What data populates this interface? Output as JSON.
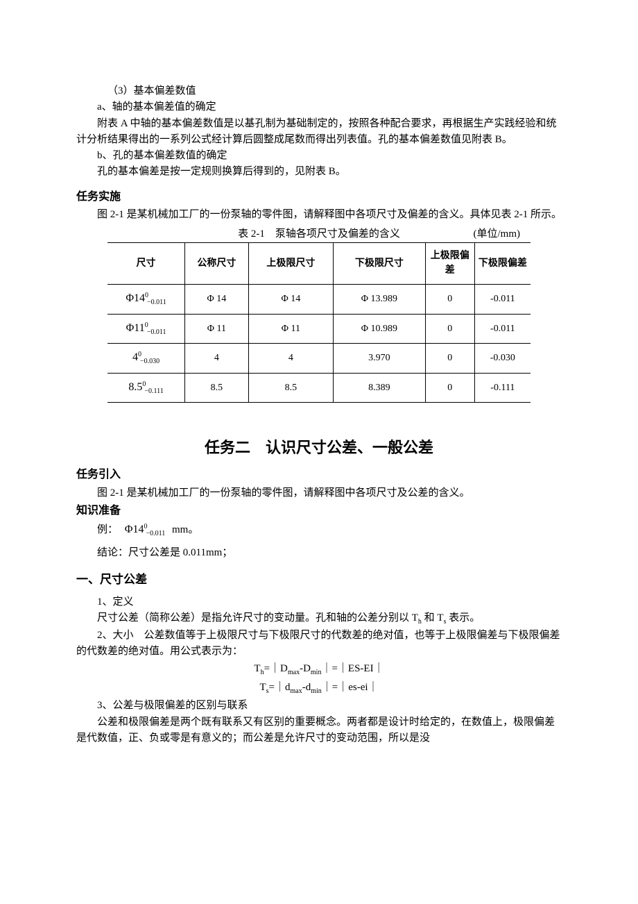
{
  "section1": {
    "item3": "（3）基本偏差数值",
    "a_label": "a、轴的基本偏差值的确定",
    "a_text": "附表 A 中轴的基本偏差数值是以基孔制为基础制定的，按照各种配合要求，再根据生产实践经验和统计分析结果得出的一系列公式经计算后圆整成尾数而得出列表值。孔的基本偏差数值见附表 B。",
    "b_label": "b、孔的基本偏差数值的确定",
    "b_text": "孔的基本偏差是按一定规则换算后得到的，见附表 B。"
  },
  "task_impl": {
    "heading": "任务实施",
    "intro": "图 2-1 是某机械加工厂的一份泵轴的零件图，请解释图中各项尺寸及偏差的含义。具体见表 2-1 所示。",
    "caption": "表 2-1　泵轴各项尺寸及偏差的含义",
    "unit": "(单位/mm)"
  },
  "table": {
    "headers": {
      "dim": "尺寸",
      "nominal": "公称尺寸",
      "upper_size": "上极限尺寸",
      "lower_size": "下极限尺寸",
      "upper_dev": "上极限偏差",
      "lower_dev": "下极限偏差"
    },
    "rows": [
      {
        "dim_base": "Φ14",
        "dim_sup": "0",
        "dim_sub": "−0.011",
        "nominal": "Φ 14",
        "upper_size": "Φ 14",
        "lower_size": "Φ 13.989",
        "upper_dev": "0",
        "lower_dev": "-0.011"
      },
      {
        "dim_base": "Φ11",
        "dim_sup": "0",
        "dim_sub": "−0.011",
        "nominal": "Φ 11",
        "upper_size": "Φ 11",
        "lower_size": "Φ 10.989",
        "upper_dev": "0",
        "lower_dev": "-0.011"
      },
      {
        "dim_base": "4",
        "dim_sup": "0",
        "dim_sub": "−0.030",
        "nominal": "4",
        "upper_size": "4",
        "lower_size": "3.970",
        "upper_dev": "0",
        "lower_dev": "-0.030"
      },
      {
        "dim_base": "8.5",
        "dim_sup": "0",
        "dim_sub": "−0.111",
        "nominal": "8.5",
        "upper_size": "8.5",
        "lower_size": "8.389",
        "upper_dev": "0",
        "lower_dev": "-0.111"
      }
    ]
  },
  "task2": {
    "title": "任务二　认识尺寸公差、一般公差",
    "lead_in": "任务引入",
    "lead_in_text": "图 2-1 是某机械加工厂的一份泵轴的零件图，请解释图中各项尺寸及公差的含义。",
    "prep": "知识准备",
    "example_prefix": "例：",
    "example_dim_base": "Φ14",
    "example_dim_sup": "0",
    "example_dim_sub": "−0.011",
    "example_suffix": "mm。",
    "conclusion": "结论：尺寸公差是 0.011mm；",
    "sec1_head": "一、尺寸公差",
    "p1_label": "1、定义",
    "p1_text_a": "尺寸公差（简称公差）是指允许尺寸的变动量。孔和轴的公差分别以 T",
    "p1_text_b": " 和 T",
    "p1_text_c": " 表示。",
    "p1_sub1": "h",
    "p1_sub2": "s",
    "p2_label": "2、大小　公差数值等于上极限尺寸与下极限尺寸的代数差的绝对值，也等于上极限偏差与下极限偏差的代数差的绝对值。用公式表示为：",
    "formula1_a": "T",
    "formula1_sub": "h",
    "formula1_b": "=｜D",
    "formula1_sub2": "max",
    "formula1_c": "-D",
    "formula1_sub3": "min",
    "formula1_d": "｜=｜ES-EI｜",
    "formula2_a": "T",
    "formula2_sub": "s",
    "formula2_b": "=｜d",
    "formula2_sub2": "max",
    "formula2_c": "-d",
    "formula2_sub3": "min",
    "formula2_d": "｜=｜es-ei｜",
    "p3_label": "3、公差与极限偏差的区别与联系",
    "p3_text": "公差和极限偏差是两个既有联系又有区别的重要概念。两者都是设计时给定的，在数值上，极限偏差是代数值，正、负或零是有意义的；而公差是允许尺寸的变动范围，所以是没"
  }
}
